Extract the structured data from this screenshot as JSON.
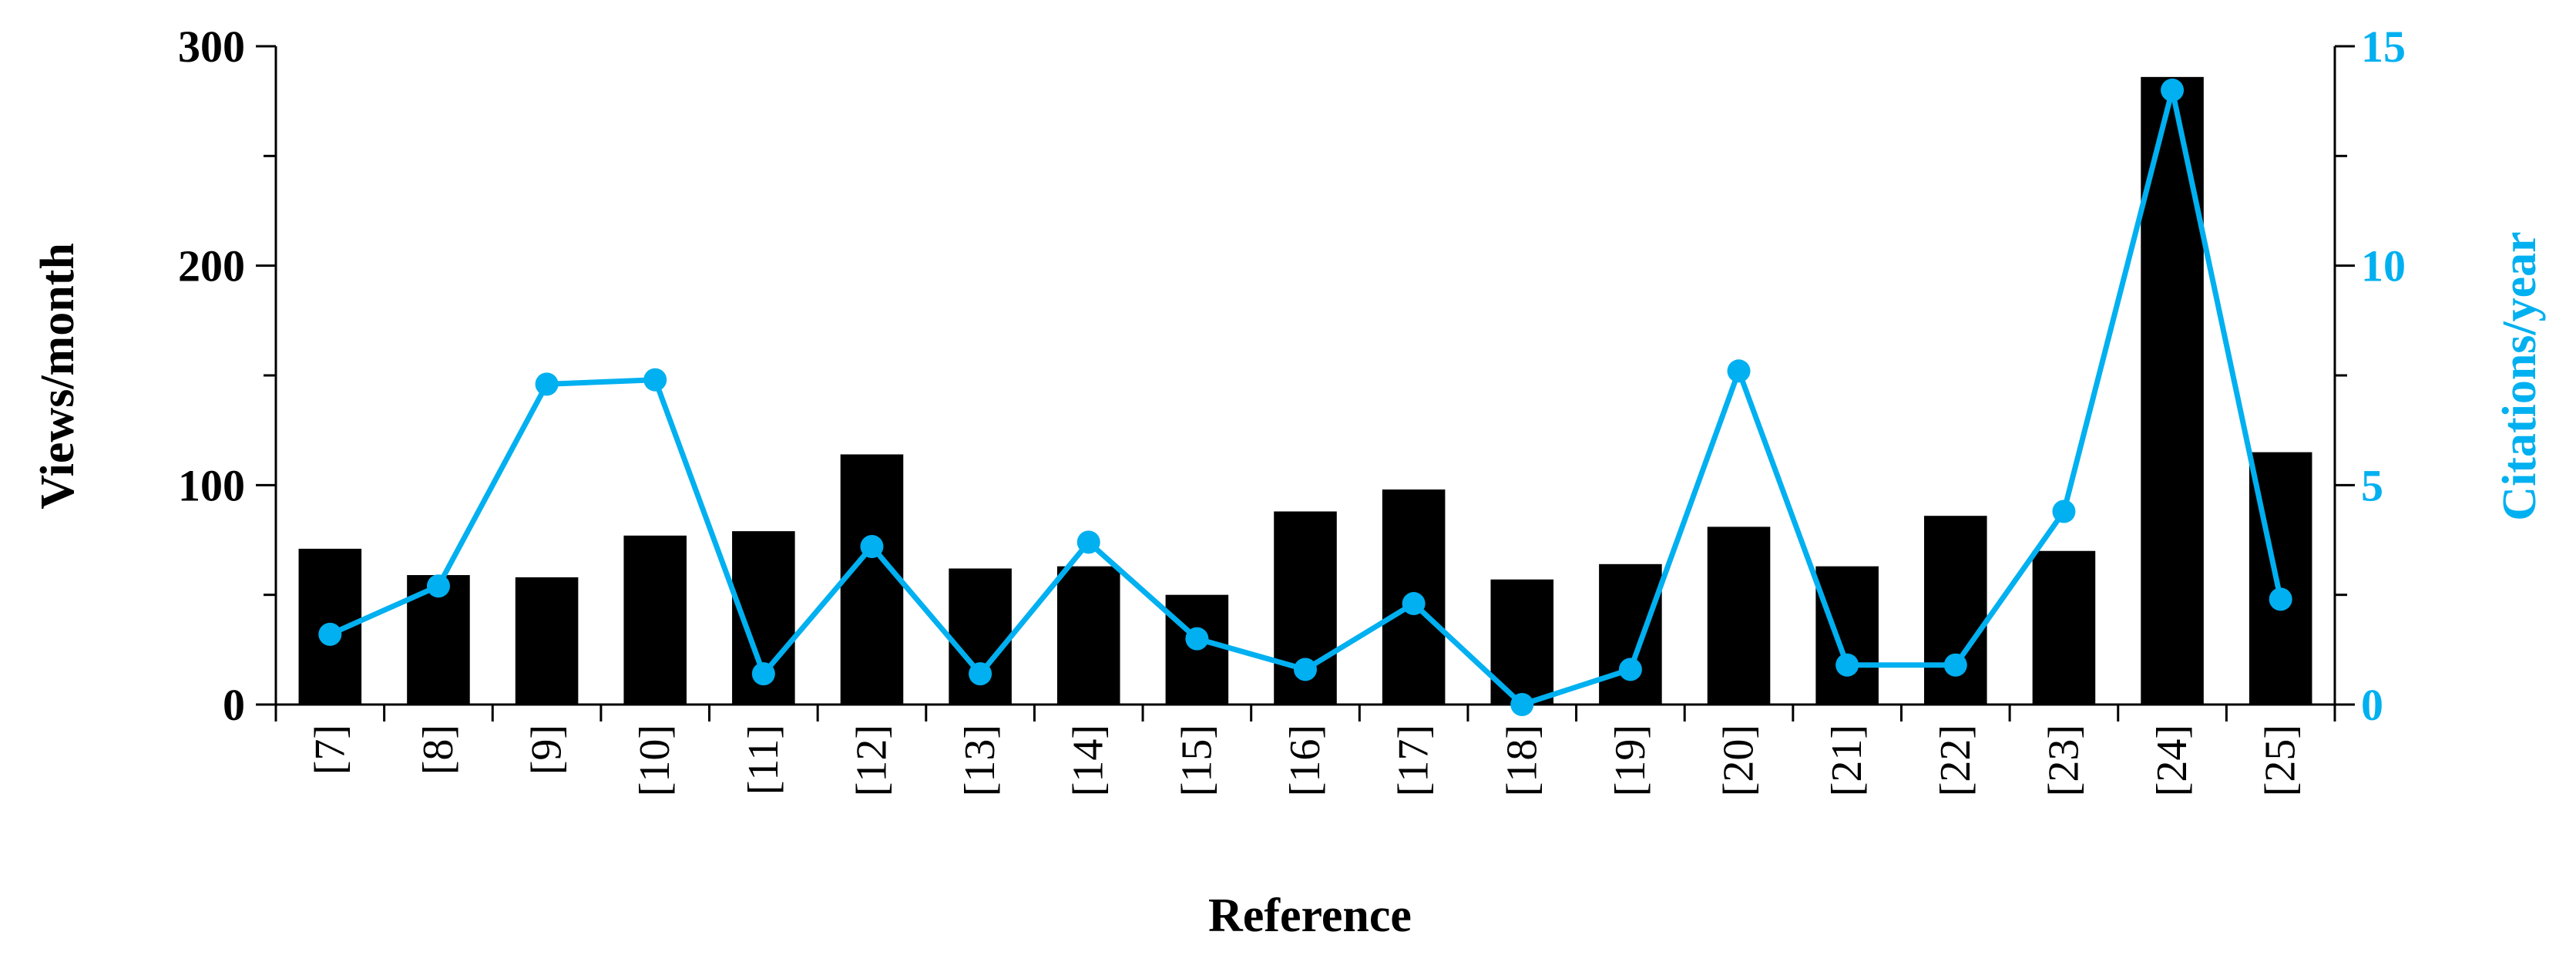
{
  "chart_data": {
    "type": "bar+line",
    "categories": [
      "[7]",
      "[8]",
      "[9]",
      "[10]",
      "[11]",
      "[12]",
      "[13]",
      "[14]",
      "[15]",
      "[16]",
      "[17]",
      "[18]",
      "[19]",
      "[20]",
      "[21]",
      "[22]",
      "[23]",
      "[24]",
      "[25]"
    ],
    "series": [
      {
        "type": "bar",
        "axis": "left",
        "values": [
          71,
          59,
          58,
          77,
          79,
          114,
          62,
          63,
          50,
          88,
          98,
          57,
          64,
          81,
          63,
          86,
          70,
          286,
          115
        ],
        "color": "#000000"
      },
      {
        "type": "line",
        "axis": "right",
        "values": [
          1.6,
          2.7,
          7.3,
          7.4,
          0.7,
          3.6,
          0.7,
          3.7,
          1.5,
          0.8,
          2.3,
          0.0,
          0.8,
          7.6,
          0.9,
          0.9,
          4.4,
          14.0,
          2.4
        ],
        "color": "#00B0F0"
      }
    ],
    "xlabel": "Reference",
    "ylabel": "Views/month",
    "y2label": "Citations/year",
    "ylim": [
      0,
      300
    ],
    "y2lim": [
      0,
      15
    ],
    "yticks": [
      "0",
      "100",
      "200",
      "300"
    ],
    "y2ticks": [
      "0",
      "5",
      "10",
      "15"
    ],
    "grid": false,
    "legend": "none",
    "colors": {
      "bars": "#000000",
      "line": "#00B0F0",
      "left_axis": "#000000",
      "right_axis": "#00B0F0"
    }
  }
}
